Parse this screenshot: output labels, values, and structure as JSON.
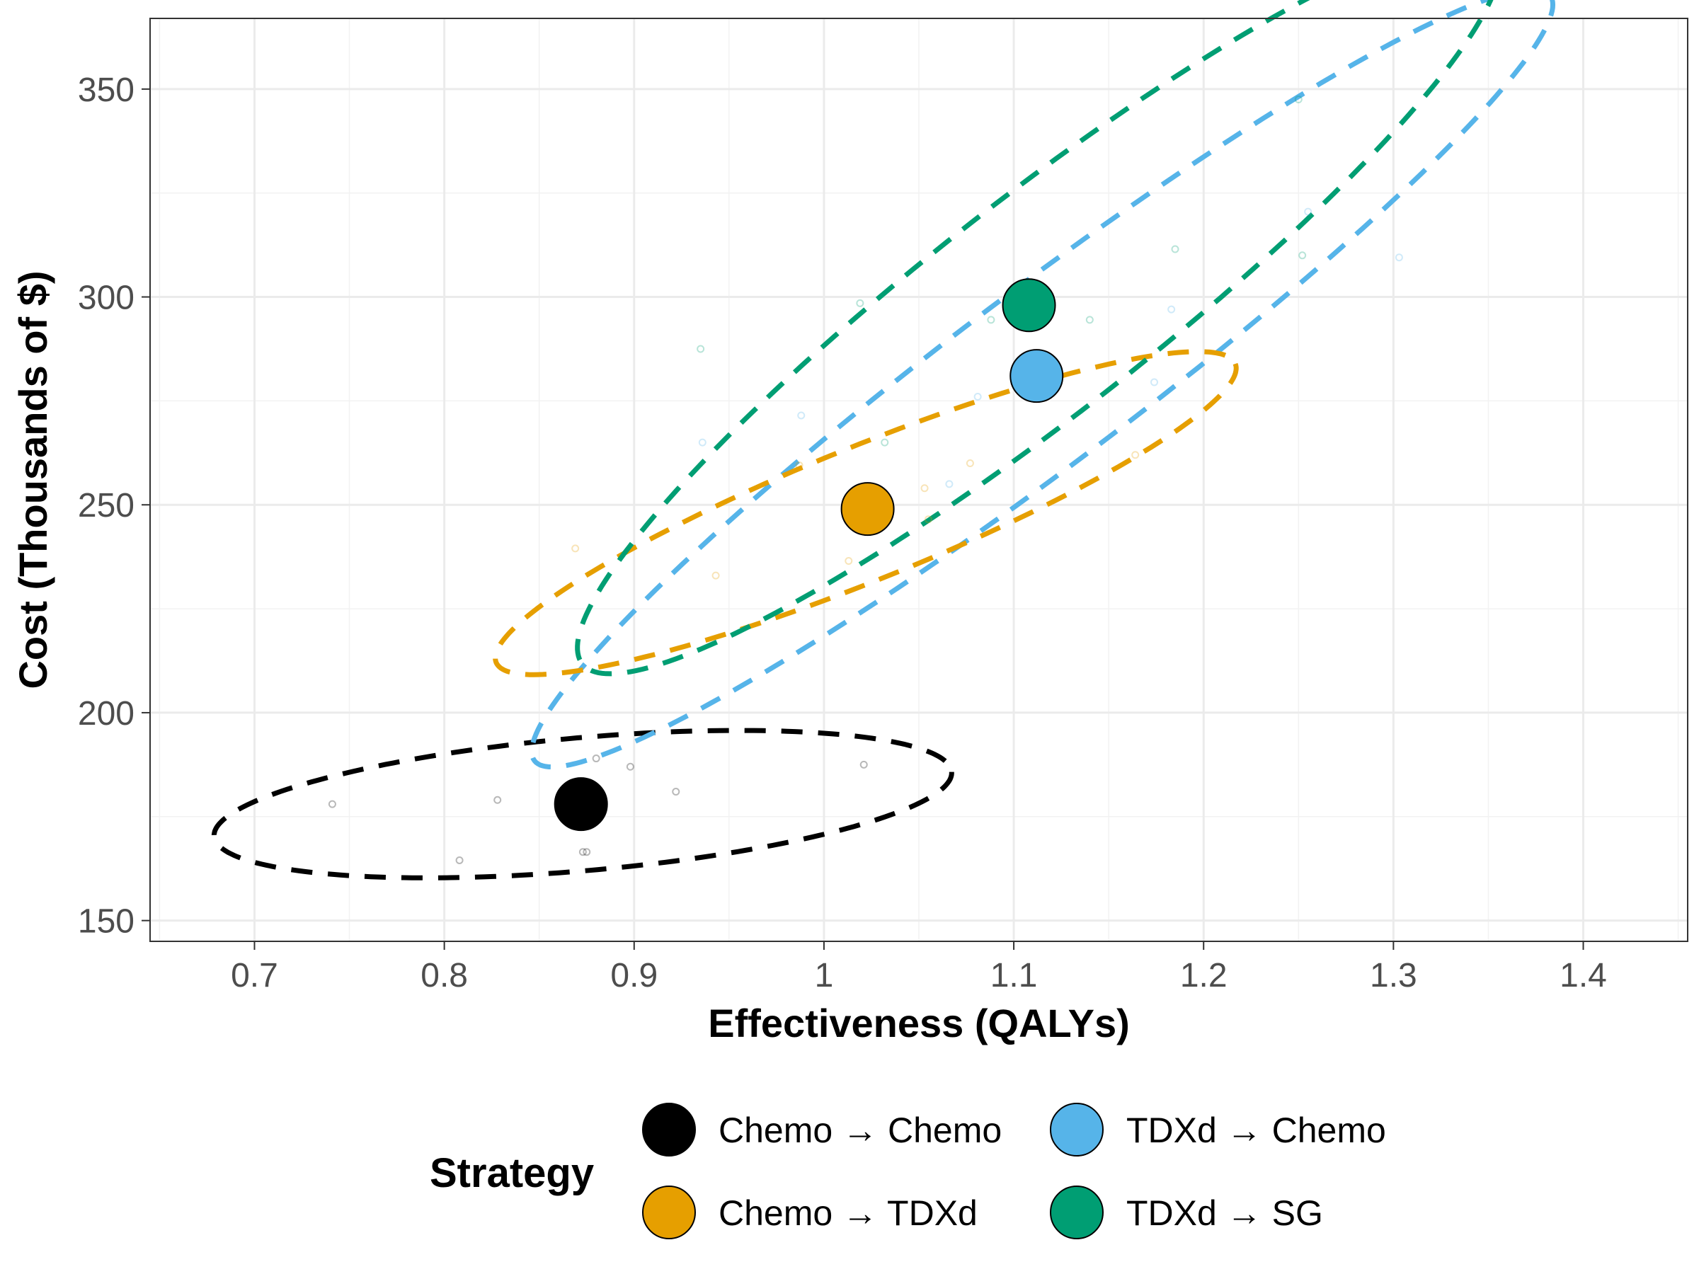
{
  "chart_data": {
    "type": "scatter",
    "xlabel": "Effectiveness (QALYs)",
    "ylabel": "Cost (Thousands of $)",
    "xlim": [
      0.645,
      1.455
    ],
    "ylim": [
      145,
      367
    ],
    "x_ticks": [
      0.7,
      0.8,
      0.9,
      1.0,
      1.1,
      1.2,
      1.3,
      1.4
    ],
    "x_tick_labels": [
      "0.7",
      "0.8",
      "0.9",
      "1",
      "1.1",
      "1.2",
      "1.3",
      "1.4"
    ],
    "y_ticks": [
      150,
      200,
      250,
      300,
      350
    ],
    "y_tick_labels": [
      "150",
      "200",
      "250",
      "300",
      "350"
    ],
    "grid": true,
    "ellipses": "dashed confidence ellipses around each strategy's probabilistic samples",
    "legend": {
      "title": "Strategy",
      "position": "bottom"
    },
    "series": [
      {
        "name": "Chemo → Chemo",
        "color": "#000000",
        "mean": {
          "x": 0.872,
          "y": 178
        },
        "ellipse": {
          "cx": 0.873,
          "cy": 178,
          "rx": 0.195,
          "ry": 16,
          "angle": 5
        },
        "samples": [
          {
            "x": 0.741,
            "y": 178
          },
          {
            "x": 0.808,
            "y": 164.5
          },
          {
            "x": 0.828,
            "y": 179
          },
          {
            "x": 0.873,
            "y": 166.5
          },
          {
            "x": 0.875,
            "y": 166.5
          },
          {
            "x": 0.88,
            "y": 189
          },
          {
            "x": 0.898,
            "y": 187
          },
          {
            "x": 0.922,
            "y": 181
          },
          {
            "x": 1.021,
            "y": 187.5
          }
        ]
      },
      {
        "name": "Chemo → TDXd",
        "color": "#E69F00",
        "mean": {
          "x": 1.023,
          "y": 249
        },
        "ellipse": {
          "cx": 1.022,
          "cy": 248,
          "rx": 0.21,
          "ry": 16,
          "angle": 22
        },
        "samples": [
          {
            "x": 0.869,
            "y": 239.5
          },
          {
            "x": 0.943,
            "y": 233
          },
          {
            "x": 0.987,
            "y": 259.5
          },
          {
            "x": 1.013,
            "y": 236.5
          },
          {
            "x": 1.053,
            "y": 254
          },
          {
            "x": 1.055,
            "y": 246.5
          },
          {
            "x": 1.077,
            "y": 260
          },
          {
            "x": 1.164,
            "y": 262
          }
        ]
      },
      {
        "name": "TDXd → Chemo",
        "color": "#56B4E9",
        "mean": {
          "x": 1.112,
          "y": 281
        },
        "ellipse": {
          "cx": 1.115,
          "cy": 280.5,
          "rx": 0.335,
          "ry": 21,
          "angle": 37
        },
        "samples": [
          {
            "x": 0.936,
            "y": 265
          },
          {
            "x": 0.988,
            "y": 271.5
          },
          {
            "x": 1.066,
            "y": 255
          },
          {
            "x": 1.081,
            "y": 276
          },
          {
            "x": 1.174,
            "y": 279.5
          },
          {
            "x": 1.183,
            "y": 297
          },
          {
            "x": 1.255,
            "y": 320.5
          },
          {
            "x": 1.303,
            "y": 309.5
          }
        ]
      },
      {
        "name": "TDXd → SG",
        "color": "#009E73",
        "mean": {
          "x": 1.108,
          "y": 298
        },
        "ellipse": {
          "cx": 1.113,
          "cy": 297.5,
          "rx": 0.305,
          "ry": 26,
          "angle": 38
        },
        "samples": [
          {
            "x": 0.935,
            "y": 287.5
          },
          {
            "x": 1.019,
            "y": 298.5
          },
          {
            "x": 1.032,
            "y": 265
          },
          {
            "x": 1.088,
            "y": 294.5
          },
          {
            "x": 1.14,
            "y": 294.5
          },
          {
            "x": 1.185,
            "y": 311.5
          },
          {
            "x": 1.252,
            "y": 310
          },
          {
            "x": 1.25,
            "y": 347.5
          }
        ]
      }
    ]
  }
}
